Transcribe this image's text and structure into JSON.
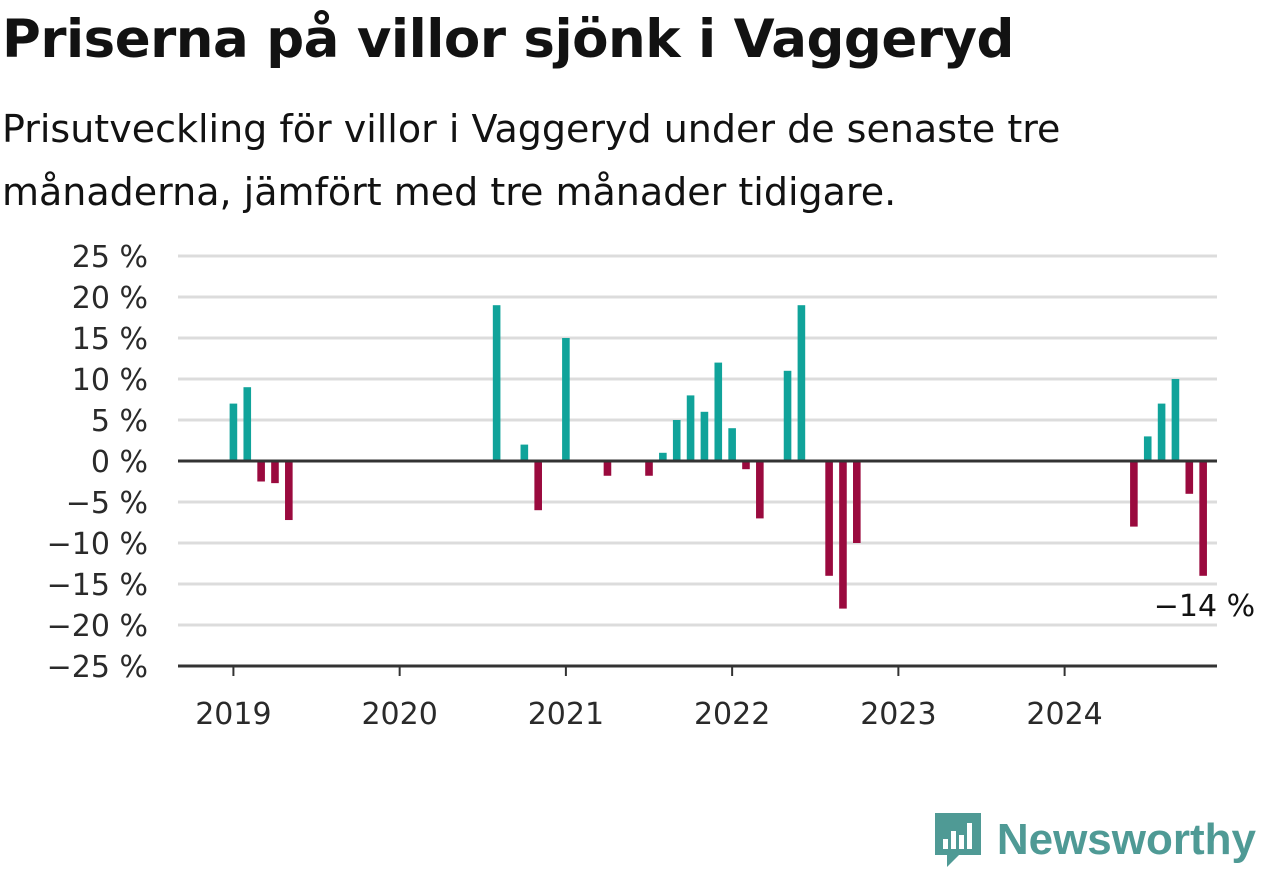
{
  "title": "Priserna på villor sjönk i Vaggeryd",
  "subtitle": "Prisutveckling för villor i Vaggeryd under de senaste tre månaderna, jämfört med tre månader tidigare.",
  "brand": "Newsworthy",
  "colors": {
    "positive": "#10a39a",
    "negative": "#9a0a3e",
    "grid": "#dcdcdc",
    "axis": "#333333",
    "brand": "#4f9a95"
  },
  "chart_data": {
    "type": "bar",
    "x_unit": "month",
    "ylim": [
      -25,
      25
    ],
    "yticks": [
      25,
      20,
      15,
      10,
      5,
      0,
      -5,
      -10,
      -15,
      -20,
      -25
    ],
    "ytick_labels": [
      "25 %",
      "20 %",
      "15 %",
      "10 %",
      "5 %",
      "0 %",
      "−5 %",
      "−10 %",
      "−15 %",
      "−20 %",
      "−25 %"
    ],
    "xtick_labels": [
      "2019",
      "2020",
      "2021",
      "2022",
      "2023",
      "2024"
    ],
    "xticks": [
      "2019-01",
      "2020-01",
      "2021-01",
      "2022-01",
      "2023-01",
      "2024-01"
    ],
    "xlim": [
      "2018-09",
      "2024-12"
    ],
    "grid": true,
    "points": [
      {
        "x": "2019-01",
        "y": 7
      },
      {
        "x": "2019-02",
        "y": 9
      },
      {
        "x": "2019-03",
        "y": -2.5
      },
      {
        "x": "2019-04",
        "y": -2.7
      },
      {
        "x": "2019-05",
        "y": -7.2
      },
      {
        "x": "2020-08",
        "y": 19
      },
      {
        "x": "2020-10",
        "y": 2
      },
      {
        "x": "2020-11",
        "y": -6
      },
      {
        "x": "2021-01",
        "y": 15
      },
      {
        "x": "2021-04",
        "y": -1.8
      },
      {
        "x": "2021-07",
        "y": -1.8
      },
      {
        "x": "2021-08",
        "y": 1
      },
      {
        "x": "2021-09",
        "y": 5
      },
      {
        "x": "2021-10",
        "y": 8
      },
      {
        "x": "2021-11",
        "y": 6
      },
      {
        "x": "2021-12",
        "y": 12
      },
      {
        "x": "2022-01",
        "y": 4
      },
      {
        "x": "2022-02",
        "y": -1
      },
      {
        "x": "2022-03",
        "y": -7
      },
      {
        "x": "2022-05",
        "y": 11
      },
      {
        "x": "2022-06",
        "y": 19
      },
      {
        "x": "2022-08",
        "y": -14
      },
      {
        "x": "2022-09",
        "y": -18
      },
      {
        "x": "2022-10",
        "y": -10
      },
      {
        "x": "2024-06",
        "y": -8
      },
      {
        "x": "2024-07",
        "y": 3
      },
      {
        "x": "2024-08",
        "y": 7
      },
      {
        "x": "2024-09",
        "y": 10
      },
      {
        "x": "2024-10",
        "y": -4
      },
      {
        "x": "2024-11",
        "y": -14
      }
    ],
    "last_value_label": "−14 %"
  }
}
